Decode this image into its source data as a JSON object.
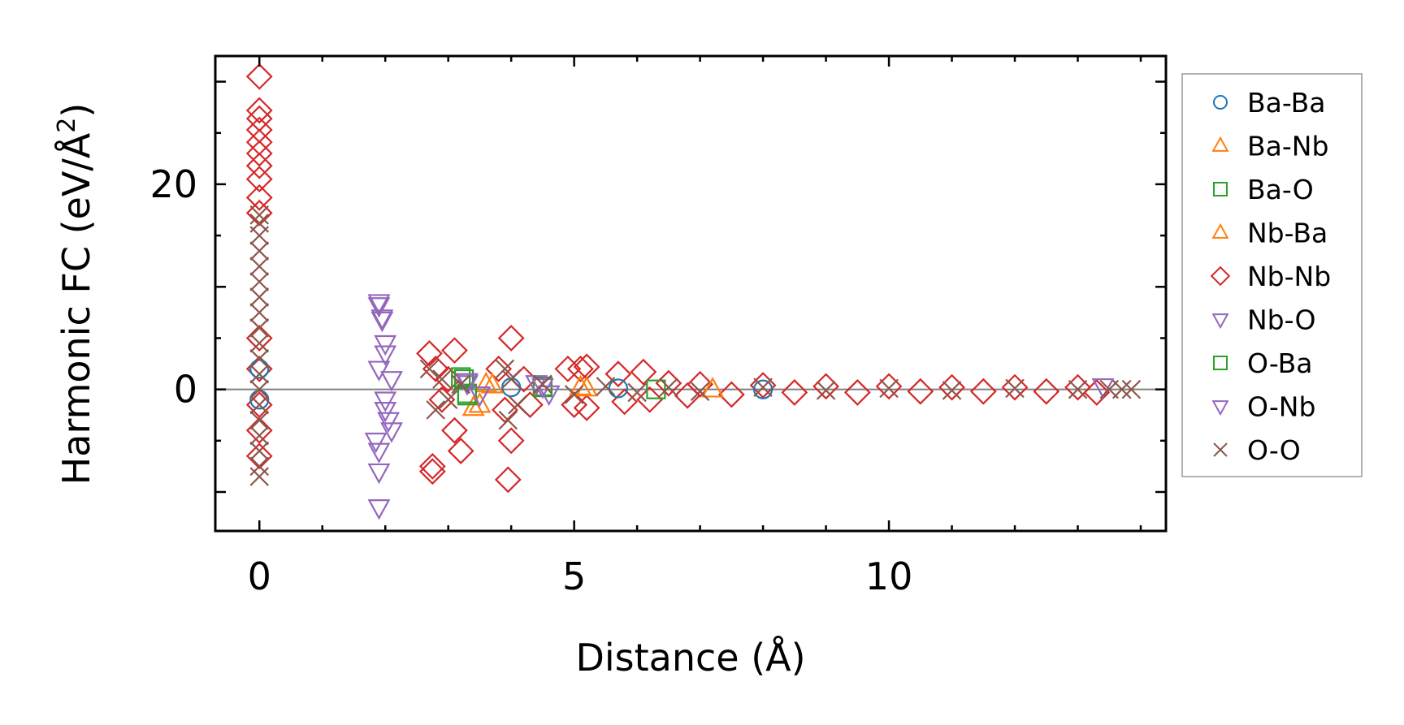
{
  "chart_data": {
    "type": "scatter",
    "xlabel": "Distance (Å)",
    "ylabel": "Harmonic FC (eV/Å²)",
    "ylabel_main": "Harmonic FC (eV/Å",
    "ylabel_sup": "2",
    "ylabel_close": ")",
    "xlim": [
      -0.7,
      14.4
    ],
    "ylim": [
      -13.8,
      32.5
    ],
    "x_ticks": [
      0,
      5,
      10
    ],
    "y_ticks": [
      0,
      20
    ],
    "legend_position": "outside-right",
    "zero_line": true,
    "series": [
      {
        "name": "Ba-Ba",
        "marker": "circle",
        "color": "#1f77b4",
        "points": [
          [
            0,
            2.0
          ],
          [
            0,
            -1.0
          ],
          [
            4.0,
            0.2
          ],
          [
            5.7,
            0.1
          ],
          [
            8.0,
            0.0
          ]
        ]
      },
      {
        "name": "Ba-Nb",
        "marker": "triangle-up",
        "color": "#ff7f0e",
        "points": [
          [
            3.4,
            -1.8
          ],
          [
            3.6,
            0.5
          ],
          [
            5.1,
            0.2
          ],
          [
            7.2,
            0.0
          ]
        ]
      },
      {
        "name": "Ba-O",
        "marker": "square",
        "color": "#2ca02c",
        "points": [
          [
            3.2,
            1.2
          ],
          [
            3.3,
            -0.6
          ],
          [
            4.5,
            0.3
          ],
          [
            6.3,
            0.0
          ]
        ]
      },
      {
        "name": "Nb-Ba",
        "marker": "triangle-up",
        "color": "#ff7f0e",
        "points": [
          [
            3.5,
            -1.5
          ],
          [
            3.7,
            0.4
          ],
          [
            5.2,
            0.1
          ]
        ]
      },
      {
        "name": "Nb-Nb",
        "marker": "diamond",
        "color": "#d62728",
        "points": [
          [
            0,
            30.5
          ],
          [
            0,
            27.2
          ],
          [
            0,
            26.4
          ],
          [
            0,
            25.3
          ],
          [
            0,
            24.1
          ],
          [
            0,
            23.0
          ],
          [
            0,
            21.8
          ],
          [
            0,
            20.5
          ],
          [
            0,
            18.7
          ],
          [
            0,
            17.2
          ],
          [
            0,
            5.0
          ],
          [
            0,
            2.0
          ],
          [
            0,
            -1.5
          ],
          [
            0,
            -4.0
          ],
          [
            0,
            -6.5
          ],
          [
            2.7,
            3.5
          ],
          [
            2.8,
            2.0
          ],
          [
            2.9,
            -1.0
          ],
          [
            2.75,
            -7.5
          ],
          [
            2.75,
            -8.0
          ],
          [
            3.1,
            3.8
          ],
          [
            3.1,
            -4.0
          ],
          [
            3.2,
            -6.0
          ],
          [
            3.0,
            1.0
          ],
          [
            3.8,
            2.0
          ],
          [
            3.9,
            -2.0
          ],
          [
            4.0,
            5.0
          ],
          [
            4.0,
            -5.0
          ],
          [
            3.95,
            -8.8
          ],
          [
            4.2,
            1.0
          ],
          [
            4.3,
            -1.5
          ],
          [
            4.9,
            2.0
          ],
          [
            5.0,
            -1.5
          ],
          [
            5.1,
            2.0
          ],
          [
            5.2,
            -1.8
          ],
          [
            5.2,
            2.2
          ],
          [
            5.7,
            1.5
          ],
          [
            5.8,
            -1.2
          ],
          [
            6.1,
            1.7
          ],
          [
            6.2,
            -1.0
          ],
          [
            6.5,
            0.6
          ],
          [
            6.8,
            -0.6
          ],
          [
            7.0,
            0.5
          ],
          [
            7.5,
            -0.5
          ],
          [
            8.0,
            0.4
          ],
          [
            8.5,
            -0.3
          ],
          [
            9.0,
            0.3
          ],
          [
            9.5,
            -0.3
          ],
          [
            10.0,
            0.3
          ],
          [
            10.5,
            -0.2
          ],
          [
            11.0,
            0.2
          ],
          [
            11.5,
            -0.2
          ],
          [
            12.0,
            0.2
          ],
          [
            12.5,
            -0.2
          ],
          [
            13.0,
            0.2
          ],
          [
            13.3,
            -0.3
          ]
        ]
      },
      {
        "name": "Nb-O",
        "marker": "triangle-down",
        "color": "#9467bd",
        "points": [
          [
            1.9,
            8.5
          ],
          [
            1.95,
            7.0
          ],
          [
            2.0,
            4.5
          ],
          [
            1.9,
            2.0
          ],
          [
            2.0,
            -2.0
          ],
          [
            1.85,
            -5.0
          ],
          [
            1.9,
            -8.0
          ],
          [
            1.9,
            -11.5
          ],
          [
            2.1,
            1.0
          ],
          [
            2.05,
            -3.0
          ],
          [
            3.3,
            0.8
          ],
          [
            3.5,
            -0.5
          ],
          [
            4.4,
            0.6
          ],
          [
            4.6,
            -0.4
          ]
        ]
      },
      {
        "name": "O-Ba",
        "marker": "square",
        "color": "#2ca02c",
        "points": [
          [
            3.25,
            1.0
          ],
          [
            3.3,
            -0.4
          ],
          [
            4.5,
            0.2
          ]
        ]
      },
      {
        "name": "O-Nb",
        "marker": "triangle-down",
        "color": "#9467bd",
        "points": [
          [
            1.9,
            8.2
          ],
          [
            1.95,
            6.8
          ],
          [
            2.0,
            3.5
          ],
          [
            2.0,
            -1.0
          ],
          [
            1.9,
            -6.0
          ],
          [
            2.1,
            -4.0
          ],
          [
            3.3,
            0.6
          ],
          [
            4.5,
            0.3
          ],
          [
            13.4,
            0.3
          ]
        ]
      },
      {
        "name": "O-O",
        "marker": "x",
        "color": "#8c564b",
        "points": [
          [
            0,
            17.0
          ],
          [
            0,
            16.2
          ],
          [
            0,
            15.0
          ],
          [
            0,
            13.5
          ],
          [
            0,
            12.0
          ],
          [
            0,
            10.5
          ],
          [
            0,
            9.0
          ],
          [
            0,
            7.5
          ],
          [
            0,
            6.0
          ],
          [
            0,
            4.5
          ],
          [
            0,
            3.0
          ],
          [
            0,
            1.5
          ],
          [
            0,
            0.0
          ],
          [
            0,
            -1.5
          ],
          [
            0,
            -3.0
          ],
          [
            0,
            -4.5
          ],
          [
            0,
            -6.0
          ],
          [
            0,
            -7.5
          ],
          [
            0,
            -8.5
          ],
          [
            2.7,
            2.0
          ],
          [
            2.8,
            -2.0
          ],
          [
            2.9,
            1.0
          ],
          [
            3.0,
            -1.0
          ],
          [
            3.2,
            0.5
          ],
          [
            3.9,
            2.0
          ],
          [
            3.95,
            -3.0
          ],
          [
            4.0,
            1.0
          ],
          [
            4.1,
            -1.5
          ],
          [
            4.5,
            0.5
          ],
          [
            5.0,
            -0.5
          ],
          [
            5.5,
            0.3
          ],
          [
            6.0,
            -0.3
          ],
          [
            6.5,
            0.2
          ],
          [
            7.0,
            -0.2
          ],
          [
            8.0,
            0.2
          ],
          [
            9.0,
            -0.1
          ],
          [
            10.0,
            0.1
          ],
          [
            11.0,
            -0.1
          ],
          [
            12.0,
            0.1
          ],
          [
            13.0,
            0.0
          ],
          [
            13.5,
            0.0
          ],
          [
            13.7,
            0.0
          ],
          [
            13.85,
            0.0
          ]
        ]
      }
    ]
  }
}
